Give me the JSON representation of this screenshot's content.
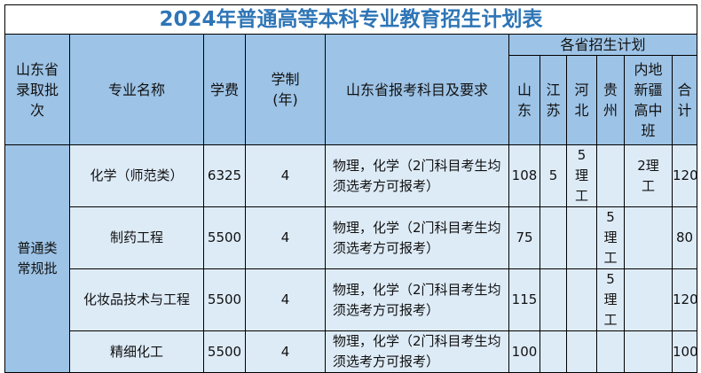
{
  "title": "2024年普通高等本科专业教育招生计划表",
  "headers": {
    "batch": "山东省录取批次",
    "major": "专业名称",
    "fee": "学费",
    "years": "学制(年)",
    "requirement": "山东省报考科目及要求",
    "plan_group": "各省招生计划",
    "provinces": [
      "山东",
      "江苏",
      "河北",
      "贵州",
      "内地新疆高中班",
      "合计"
    ]
  },
  "batch_value": "普通类常规批",
  "rows": [
    {
      "major": "化学（师范类）",
      "fee": "6325",
      "years": "4",
      "requirement": "物理，化学（2门科目考生均须选考方可报考）",
      "plan": [
        "108",
        "5",
        "5理工",
        "",
        "2理工",
        "120"
      ]
    },
    {
      "major": "制药工程",
      "fee": "5500",
      "years": "4",
      "requirement": "物理，化学（2门科目考生均须选考方可报考）",
      "plan": [
        "75",
        "",
        "",
        "5理工",
        "",
        "80"
      ]
    },
    {
      "major": "化妆品技术与工程",
      "fee": "5500",
      "years": "4",
      "requirement": "物理，化学（2门科目考生均须选考方可报考）",
      "plan": [
        "115",
        "",
        "",
        "5理工",
        "",
        "120"
      ]
    },
    {
      "major": "精细化工",
      "fee": "5500",
      "years": "4",
      "requirement": "物理，化学（2门科目考生均须选考方可报考）",
      "plan": [
        "100",
        "",
        "",
        "",
        "",
        "100"
      ]
    }
  ],
  "colors": {
    "title": "#2e75b6",
    "header_bg": "#9dc3e6",
    "body_bg": "#ddebf7"
  }
}
